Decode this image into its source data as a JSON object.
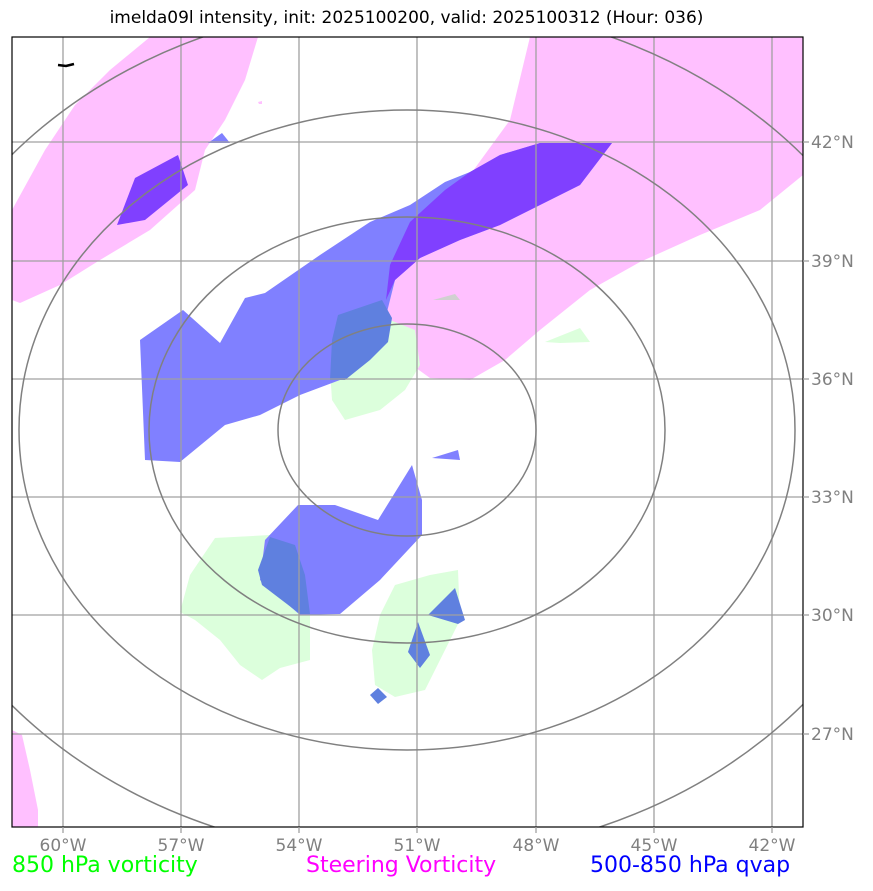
{
  "title": "imelda09l intensity, init: 2025100200, valid: 2025100312 (Hour: 036)",
  "longitude_labels": [
    "60°W",
    "57°W",
    "54°W",
    "51°W",
    "48°W",
    "45°W",
    "42°W"
  ],
  "latitude_labels": [
    "42°N",
    "39°N",
    "36°N",
    "33°N",
    "30°N",
    "27°N"
  ],
  "legend": {
    "vorticity_850": "850 hPa vorticity",
    "steering_vorticity": "Steering Vorticity",
    "qvap": "500-850 hPa qvap"
  },
  "colors": {
    "vorticity_850": "#00ff00",
    "steering_vorticity": "#ff00ff",
    "qvap": "#0000ff",
    "vorticity_fill": "#dcffdc",
    "steering_fill": "#ffc0ff",
    "qvap_fill": "#8080ff",
    "overlap_fill": "#8040ff",
    "grid": "#a0a0a0",
    "rings": "#808080"
  }
}
